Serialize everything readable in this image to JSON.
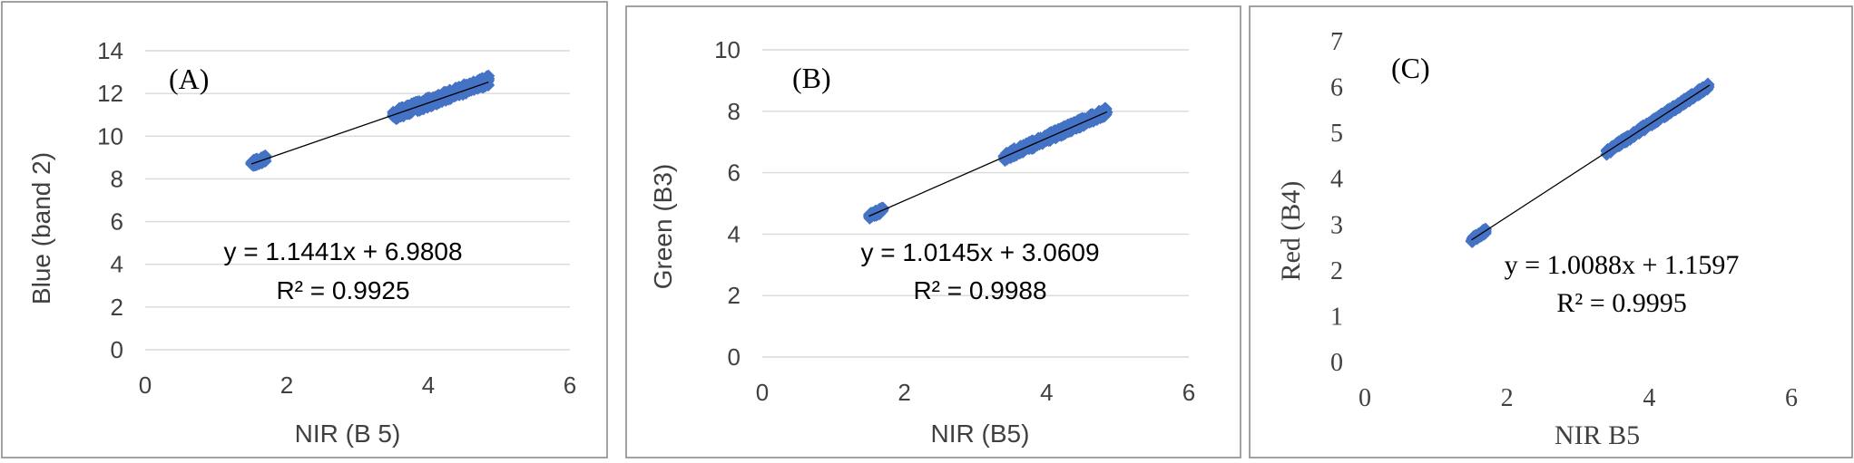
{
  "chart_data": [
    {
      "type": "scatter",
      "panel_label": "(A)",
      "xlabel": "NIR (B 5)",
      "ylabel_parts": [
        "Blue (",
        "band 2",
        ")"
      ],
      "xlim": [
        0,
        6
      ],
      "ylim": [
        0,
        14
      ],
      "xticks": [
        0,
        2,
        4,
        6
      ],
      "yticks": [
        0,
        2,
        4,
        6,
        8,
        10,
        12,
        14
      ],
      "grid": "horizontal",
      "marker_color": "#4472c4",
      "clusters": [
        {
          "x_range": [
            1.5,
            1.7
          ],
          "y_center": [
            8.7,
            8.95
          ],
          "y_spread": 0.28
        },
        {
          "x_range": [
            3.5,
            4.85
          ],
          "y_center": [
            10.98,
            12.6
          ],
          "y_spread": 0.45
        }
      ],
      "trendline": {
        "x_range": [
          1.5,
          4.85
        ],
        "slope": 1.1441,
        "intercept": 6.9808
      },
      "equation": "y = 1.1441x + 6.9808",
      "r_squared": "R² = 0.9925"
    },
    {
      "type": "scatter",
      "panel_label": "(B)",
      "xlabel": "NIR (B5)",
      "ylabel_parts": [
        "Green (B3)"
      ],
      "xlim": [
        0,
        6
      ],
      "ylim": [
        0,
        10
      ],
      "xticks": [
        0,
        2,
        4,
        6
      ],
      "yticks": [
        0,
        2,
        4,
        6,
        8,
        10
      ],
      "grid": "horizontal",
      "marker_color": "#4472c4",
      "clusters": [
        {
          "x_range": [
            1.5,
            1.7
          ],
          "y_center": [
            4.58,
            4.79
          ],
          "y_spread": 0.16
        },
        {
          "x_range": [
            3.4,
            4.85
          ],
          "y_center": [
            6.51,
            8.0
          ],
          "y_spread": 0.26
        }
      ],
      "trendline": {
        "x_range": [
          1.5,
          4.85
        ],
        "slope": 1.0145,
        "intercept": 3.0609
      },
      "equation": "y = 1.0145x + 3.0609",
      "r_squared": "R² = 0.9988"
    },
    {
      "type": "scatter",
      "panel_label": "(C)",
      "xlabel": "NIR B5",
      "ylabel_parts": [
        "Red (B4)"
      ],
      "xlim": [
        0,
        6
      ],
      "ylim": [
        0,
        7
      ],
      "xticks": [
        0,
        2,
        4,
        6
      ],
      "yticks": [
        0,
        1,
        2,
        3,
        4,
        5,
        6,
        7
      ],
      "grid": "none",
      "marker_color": "#4472c4",
      "clusters": [
        {
          "x_range": [
            1.5,
            1.7
          ],
          "y_center": [
            2.67,
            2.87
          ],
          "y_spread": 0.1
        },
        {
          "x_range": [
            3.4,
            4.85
          ],
          "y_center": [
            4.59,
            6.05
          ],
          "y_spread": 0.12
        }
      ],
      "trendline": {
        "x_range": [
          1.5,
          4.85
        ],
        "slope": 1.0088,
        "intercept": 1.1597
      },
      "equation": "y = 1.0088x + 1.1597",
      "r_squared": "R² = 0.9995"
    }
  ]
}
